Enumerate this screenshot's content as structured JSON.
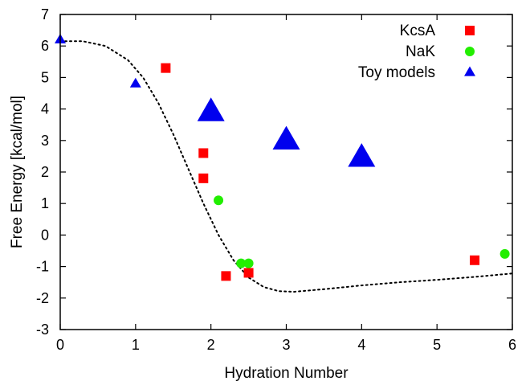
{
  "chart_data": {
    "type": "scatter",
    "title": "",
    "xlabel": "Hydration Number",
    "ylabel": "Free Energy [kcal/mol]",
    "xlim": [
      0,
      6
    ],
    "ylim": [
      -3,
      7
    ],
    "x_ticks": [
      "0",
      "1",
      "2",
      "3",
      "4",
      "5",
      "6"
    ],
    "y_ticks": [
      "-3",
      "-2",
      "-1",
      "0",
      "1",
      "2",
      "3",
      "4",
      "5",
      "6",
      "7"
    ],
    "grid": false,
    "legend_position": "top-right",
    "series": [
      {
        "name": "KcsA",
        "marker": "square",
        "color": "#ff0000",
        "points": [
          [
            1.4,
            5.3
          ],
          [
            1.9,
            2.6
          ],
          [
            1.9,
            1.8
          ],
          [
            2.2,
            -1.3
          ],
          [
            2.5,
            -1.2
          ],
          [
            5.5,
            -0.8
          ]
        ]
      },
      {
        "name": "NaK",
        "marker": "circle",
        "color": "#22ee00",
        "points": [
          [
            2.1,
            1.1
          ],
          [
            2.4,
            -0.9
          ],
          [
            2.5,
            -0.9
          ],
          [
            5.9,
            -0.6
          ]
        ]
      },
      {
        "name": "Toy models",
        "marker": "triangle",
        "color": "#0000ee",
        "points": [
          [
            0,
            6.2,
            "small"
          ],
          [
            1,
            4.8,
            "small"
          ],
          [
            2,
            3.9,
            "large"
          ],
          [
            3,
            3.0,
            "large"
          ],
          [
            4,
            2.45,
            "large"
          ]
        ]
      }
    ],
    "fit_curve": {
      "style": "dotted",
      "color": "#000000",
      "points": [
        [
          0.0,
          6.15
        ],
        [
          0.3,
          6.15
        ],
        [
          0.6,
          6.0
        ],
        [
          0.9,
          5.55
        ],
        [
          1.1,
          5.0
        ],
        [
          1.3,
          4.2
        ],
        [
          1.5,
          3.2
        ],
        [
          1.7,
          2.1
        ],
        [
          1.9,
          1.0
        ],
        [
          2.1,
          0.0
        ],
        [
          2.3,
          -0.8
        ],
        [
          2.5,
          -1.35
        ],
        [
          2.7,
          -1.65
        ],
        [
          2.9,
          -1.78
        ],
        [
          3.1,
          -1.8
        ],
        [
          3.5,
          -1.72
        ],
        [
          4.0,
          -1.6
        ],
        [
          4.5,
          -1.5
        ],
        [
          5.0,
          -1.42
        ],
        [
          5.5,
          -1.33
        ],
        [
          6.0,
          -1.22
        ]
      ]
    }
  }
}
